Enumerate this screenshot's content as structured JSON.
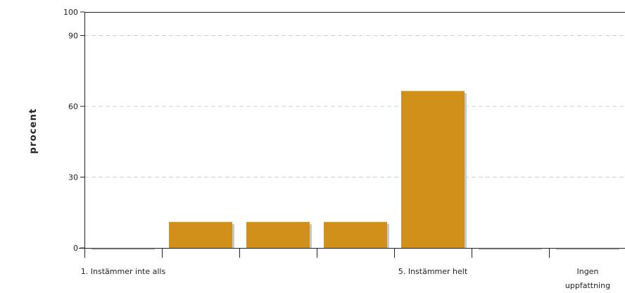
{
  "chart_data": {
    "type": "bar",
    "ylabel": "procent",
    "ylim": [
      0,
      100
    ],
    "yticks": [
      0,
      30,
      60,
      90,
      100
    ],
    "grid": true,
    "bar_color": "#D19019",
    "shadow_color": "#C8C8C8",
    "categories": [
      "1. Instämmer inte alls",
      "",
      "",
      "",
      "5. Instämmer helt",
      "",
      "Ingen uppfattning"
    ],
    "category_label_lines": [
      [
        "1. Instämmer inte alls"
      ],
      [],
      [],
      [],
      [
        "5. Instämmer helt"
      ],
      [],
      [
        "Ingen",
        "uppfattning"
      ]
    ],
    "values": [
      0,
      11,
      11,
      11,
      66.5,
      0,
      0
    ]
  }
}
